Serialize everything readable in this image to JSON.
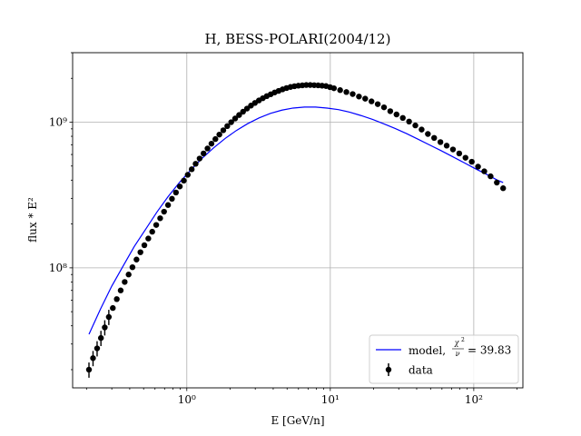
{
  "chart_data": {
    "type": "scatter",
    "title": "H, BESS-POLARI(2004/12)",
    "xlabel": "E [GeV/n]",
    "ylabel": "flux * E²",
    "xscale": "log",
    "yscale": "log",
    "xlim": [
      0.16,
      220
    ],
    "ylim": [
      15000000,
      3000000000
    ],
    "grid": true,
    "legend_placement": "lower-right",
    "x_ticks": [
      {
        "value": 1,
        "label": "10⁰"
      },
      {
        "value": 10,
        "label": "10¹"
      },
      {
        "value": 100,
        "label": "10²"
      }
    ],
    "y_ticks": [
      {
        "value": 100000000,
        "label": "10⁸"
      },
      {
        "value": 1000000000,
        "label": "10⁹"
      }
    ],
    "series": [
      {
        "name": "data",
        "kind": "errorbar-scatter",
        "color": "#000000",
        "x": [
          0.208,
          0.222,
          0.237,
          0.252,
          0.268,
          0.286,
          0.305,
          0.325,
          0.346,
          0.369,
          0.393,
          0.418,
          0.446,
          0.475,
          0.506,
          0.539,
          0.574,
          0.612,
          0.652,
          0.694,
          0.74,
          0.788,
          0.84,
          0.894,
          0.953,
          1.015,
          1.082,
          1.152,
          1.228,
          1.308,
          1.394,
          1.485,
          1.582,
          1.686,
          1.796,
          1.914,
          2.039,
          2.172,
          2.315,
          2.466,
          2.628,
          2.8,
          2.983,
          3.179,
          3.387,
          3.608,
          3.845,
          4.096,
          4.365,
          4.65,
          4.955,
          5.279,
          5.624,
          5.993,
          6.385,
          6.803,
          7.248,
          7.723,
          8.228,
          8.767,
          9.341,
          9.952,
          10.6,
          11.71,
          12.95,
          14.32,
          15.84,
          17.51,
          19.37,
          21.41,
          23.68,
          26.18,
          28.95,
          32.02,
          35.41,
          39.16,
          43.3,
          47.88,
          52.95,
          58.56,
          64.75,
          71.6,
          79.18,
          87.56,
          96.83,
          107.1,
          118.4,
          131.0,
          144.8,
          160.2
        ],
        "y": [
          20000000,
          24000000,
          28000000,
          33000000,
          39000000,
          46000000,
          53000000,
          61000000,
          70000000,
          80000000,
          90000000,
          101000000,
          114000000,
          128000000,
          143000000,
          159000000,
          177000000,
          197000000,
          219000000,
          243000000,
          270000000,
          298000000,
          329000000,
          362000000,
          397000000,
          435000000,
          475000000,
          518000000,
          563000000,
          610000000,
          660000000,
          712000000,
          766000000,
          822000000,
          880000000,
          940000000,
          1000000000,
          1060000000,
          1120000000,
          1180000000,
          1240000000,
          1300000000,
          1355000000,
          1410000000,
          1460000000,
          1510000000,
          1555000000,
          1600000000,
          1640000000,
          1680000000,
          1715000000,
          1745000000,
          1765000000,
          1780000000,
          1790000000,
          1800000000,
          1800000000,
          1795000000,
          1790000000,
          1780000000,
          1770000000,
          1740000000,
          1710000000,
          1660000000,
          1610000000,
          1560000000,
          1500000000,
          1450000000,
          1390000000,
          1330000000,
          1265000000,
          1190000000,
          1130000000,
          1070000000,
          1010000000,
          950000000,
          890000000,
          830000000,
          780000000,
          730000000,
          690000000,
          650000000,
          610000000,
          570000000,
          535000000,
          495000000,
          460000000,
          425000000,
          385000000,
          352000000
        ]
      },
      {
        "name": "model, χ²/ν = 39.83",
        "legend_prefix": "model,",
        "legend_chi": "χ",
        "legend_nu": "ν",
        "legend_value": "= 39.83",
        "kind": "line",
        "color": "#0000ff",
        "x": [
          0.208,
          0.25,
          0.3,
          0.36,
          0.43,
          0.52,
          0.62,
          0.74,
          0.89,
          1.07,
          1.28,
          1.54,
          1.85,
          2.22,
          2.66,
          3.19,
          3.83,
          4.6,
          5.5,
          6.6,
          7.9,
          9.5,
          11.4,
          13.7,
          16.4,
          19.7,
          23.6,
          28.3,
          34.0,
          40.8,
          48.9,
          58.7,
          70.4,
          84.5,
          101.0,
          122.0,
          146.0,
          160.2
        ],
        "y": [
          35000000,
          52000000,
          75000000,
          103000000,
          140000000,
          186000000,
          242000000,
          308000000,
          386000000,
          472000000,
          566000000,
          667000000,
          773000000,
          878000000,
          978000000,
          1070000000,
          1150000000,
          1210000000,
          1250000000,
          1270000000,
          1270000000,
          1250000000,
          1220000000,
          1170000000,
          1110000000,
          1045000000,
          975000000,
          905000000,
          835000000,
          765000000,
          700000000,
          640000000,
          583000000,
          531000000,
          483000000,
          440000000,
          400000000,
          385000000
        ]
      }
    ]
  }
}
